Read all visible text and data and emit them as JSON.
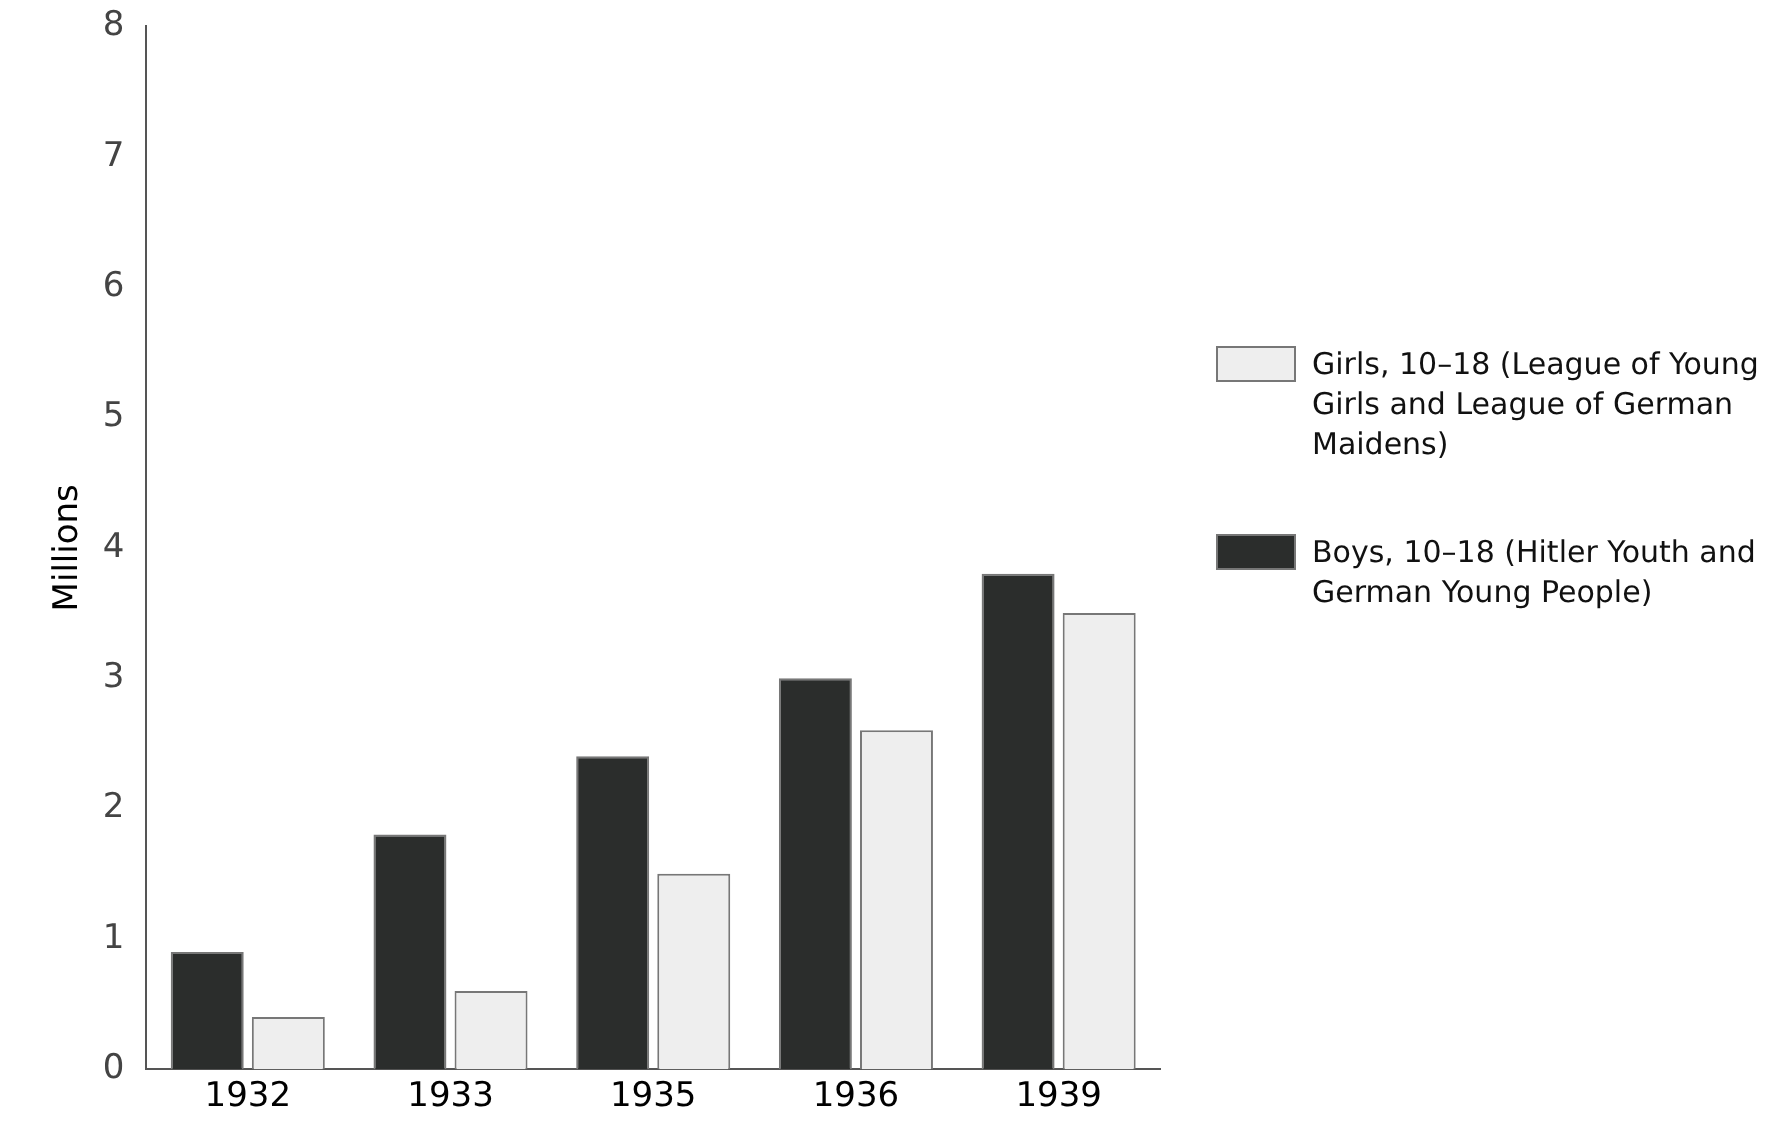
{
  "chart_data": {
    "type": "bar",
    "ylabel": "Millions",
    "categories": [
      "1932",
      "1933",
      "1935",
      "1936",
      "1939"
    ],
    "series": [
      {
        "name": "Boys, 10–18 (Hitler Youth and German Young People)",
        "color": "#2b2d2c",
        "values": [
          0.9,
          1.8,
          2.4,
          3.0,
          3.8
        ]
      },
      {
        "name": "Girls, 10–18 (League of Young Girls and League of German Maidens)",
        "color": "#eeeeee",
        "values": [
          0.4,
          0.6,
          1.5,
          2.6,
          3.5
        ]
      }
    ],
    "ylim": [
      0,
      8
    ],
    "yticks": [
      0,
      1,
      2,
      3,
      4,
      5,
      6,
      7,
      8
    ],
    "grid": false,
    "legend": "right"
  }
}
